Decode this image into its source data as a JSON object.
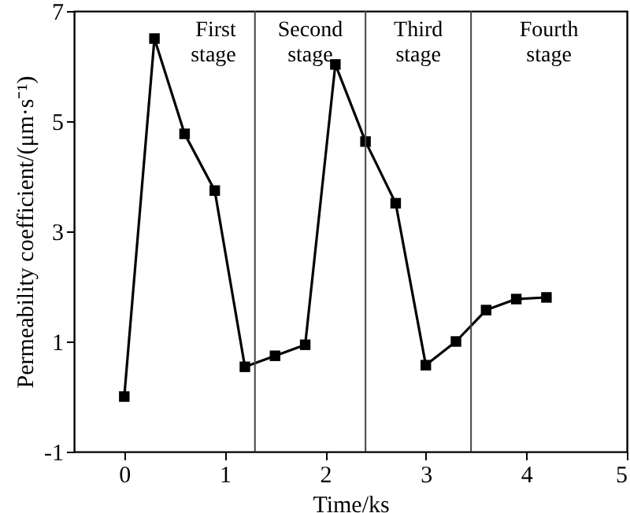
{
  "chart_data": {
    "type": "line",
    "xlabel": "Time/ks",
    "ylabel": "Permeability coefficient/(μm·s⁻¹)",
    "x": [
      0,
      0.3,
      0.6,
      0.9,
      1.2,
      1.5,
      1.8,
      2.1,
      2.4,
      2.7,
      3.0,
      3.3,
      3.6,
      3.9,
      4.2
    ],
    "series": [
      {
        "color": "#000000",
        "values": [
          0,
          6.5,
          4.77,
          3.74,
          0.54,
          0.74,
          0.94,
          6.03,
          4.63,
          3.51,
          0.57,
          1.0,
          1.57,
          1.77,
          1.8
        ]
      }
    ],
    "xlim": [
      -0.5,
      5
    ],
    "xticks": [
      0,
      1,
      2,
      3,
      4,
      5
    ],
    "ylim": [
      -1,
      7
    ],
    "yticks": [
      -1,
      1,
      3,
      5,
      7
    ],
    "marker": "square",
    "line_style": "solid",
    "grid": false,
    "ref_lines": [
      {
        "axis": "x",
        "value": 1.3,
        "color": "#444444"
      },
      {
        "axis": "x",
        "value": 2.4,
        "color": "#444444"
      },
      {
        "axis": "x",
        "value": 3.45,
        "color": "#444444"
      }
    ],
    "annotations": [
      "First stage",
      "Second stage",
      "Third stage",
      "Fourth stage"
    ]
  }
}
